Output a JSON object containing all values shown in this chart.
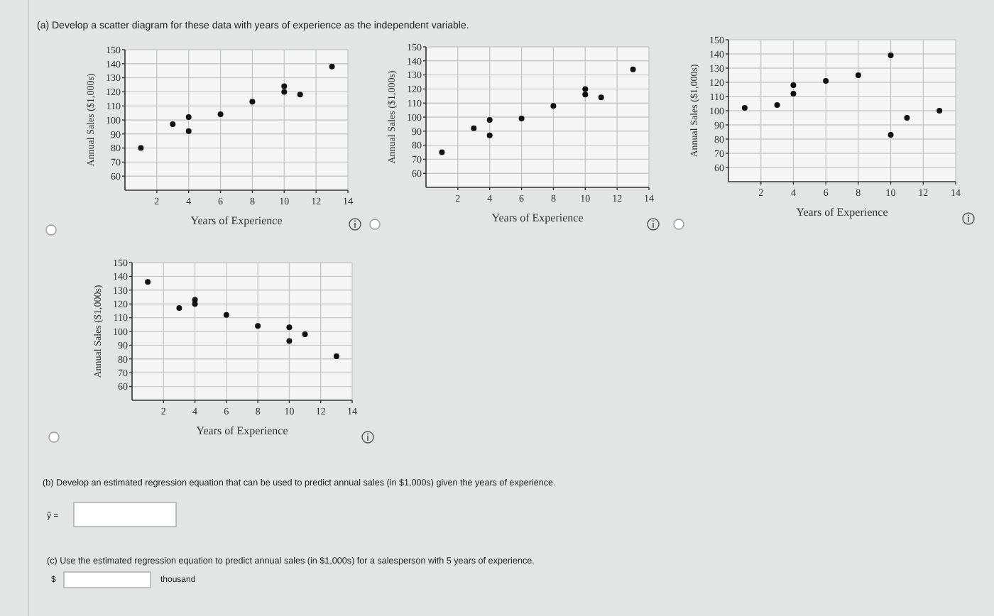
{
  "chart_data": [
    {
      "type": "scatter",
      "title": "(a) Develop a scatter diagram for these data with years of experience as the independent variable.",
      "xlabel": "Years of Experience",
      "ylabel": "Annual Sales ($1,000s)",
      "color": "#111111",
      "marker": "circle",
      "grid": true,
      "xlim": [
        0,
        14
      ],
      "ylim": [
        50,
        150
      ],
      "xticks": [
        2,
        4,
        6,
        8,
        10,
        12,
        14
      ],
      "yticks": [
        60,
        70,
        80,
        90,
        100,
        110,
        120,
        130,
        140,
        150
      ],
      "x": [
        1,
        3,
        4,
        4,
        6,
        8,
        10,
        10,
        11,
        13
      ],
      "values": [
        80,
        97,
        102,
        92,
        104,
        113,
        124,
        120,
        118,
        138
      ]
    },
    {
      "type": "scatter",
      "xlabel": "Years of Experience",
      "ylabel": "Annual Sales ($1,000s)",
      "color": "#111111",
      "marker": "circle",
      "grid": true,
      "xlim": [
        0,
        14
      ],
      "ylim": [
        50,
        150
      ],
      "xticks": [
        2,
        4,
        6,
        8,
        10,
        12,
        14
      ],
      "yticks": [
        60,
        70,
        80,
        90,
        100,
        110,
        120,
        130,
        140,
        150
      ],
      "x": [
        1,
        3,
        4,
        4,
        6,
        8,
        10,
        10,
        11,
        13
      ],
      "values": [
        75,
        92,
        98,
        87,
        99,
        108,
        120,
        116,
        114,
        134
      ]
    },
    {
      "type": "scatter",
      "xlabel": "Years of Experience",
      "ylabel": "Annual Sales ($1,000s)",
      "color": "#111111",
      "marker": "circle",
      "grid": true,
      "xlim": [
        0,
        14
      ],
      "ylim": [
        50,
        150
      ],
      "xticks": [
        2,
        4,
        6,
        8,
        10,
        12,
        14
      ],
      "yticks": [
        60,
        70,
        80,
        90,
        100,
        110,
        120,
        130,
        140,
        150
      ],
      "x": [
        1,
        3,
        4,
        4,
        6,
        8,
        10,
        10,
        11,
        13
      ],
      "values": [
        102,
        104,
        118,
        112,
        121,
        125,
        139,
        83,
        95,
        100
      ]
    },
    {
      "type": "scatter",
      "xlabel": "Years of Experience",
      "ylabel": "Annual Sales ($1,000s)",
      "color": "#111111",
      "marker": "circle",
      "grid": true,
      "xlim": [
        0,
        14
      ],
      "ylim": [
        50,
        150
      ],
      "xticks": [
        2,
        4,
        6,
        8,
        10,
        12,
        14
      ],
      "yticks": [
        60,
        70,
        80,
        90,
        100,
        110,
        120,
        130,
        140,
        150
      ],
      "x": [
        1,
        3,
        4,
        4,
        6,
        8,
        10,
        10,
        11,
        13
      ],
      "values": [
        136,
        117,
        123,
        120,
        112,
        104,
        103,
        93,
        98,
        82
      ],
      "annotations": [
        "(b) Develop an estimated regression equation that can be used to predict annual sales (in $1,000s) given the years of experience.",
        "ŷ =",
        "(c) Use the estimated regression equation to predict annual sales (in $1,000s) for a salesperson with 5 years of experience.",
        "$",
        "thousand"
      ]
    }
  ]
}
